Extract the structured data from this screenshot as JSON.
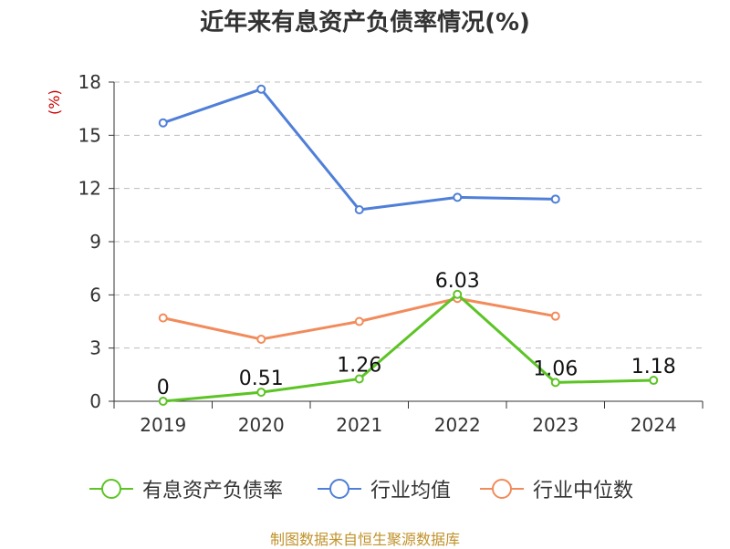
{
  "title": "近年来有息资产负债率情况(%)",
  "source": "制图数据来自恒生聚源数据库",
  "colors": {
    "series_company": "#5cc425",
    "series_industry_avg": "#4f7fd8",
    "series_industry_median": "#f28b5b",
    "grid": "#bbbbbb",
    "axis": "#333333",
    "ylabel": "#cc0000",
    "source": "#c0922a"
  },
  "chart_data": {
    "type": "line",
    "title": "近年来有息资产负债率情况(%)",
    "ylabel": "(%)",
    "xlabel": "",
    "categories": [
      "2019",
      "2020",
      "2021",
      "2022",
      "2023",
      "2024"
    ],
    "yticks": [
      "0",
      "3",
      "6",
      "9",
      "12",
      "15",
      "18"
    ],
    "ylim": [
      0,
      18
    ],
    "grid": true,
    "legend_position": "bottom",
    "series": [
      {
        "name": "有息资产负债率",
        "values": [
          0,
          0.51,
          1.26,
          6.03,
          1.06,
          1.18
        ],
        "labels": [
          "0",
          "0.51",
          "1.26",
          "6.03",
          "1.06",
          "1.18"
        ]
      },
      {
        "name": "行业均值",
        "values": [
          15.7,
          17.6,
          10.8,
          11.5,
          11.4,
          null
        ]
      },
      {
        "name": "行业中位数",
        "values": [
          4.7,
          3.5,
          4.5,
          5.8,
          4.8,
          null
        ]
      }
    ]
  }
}
